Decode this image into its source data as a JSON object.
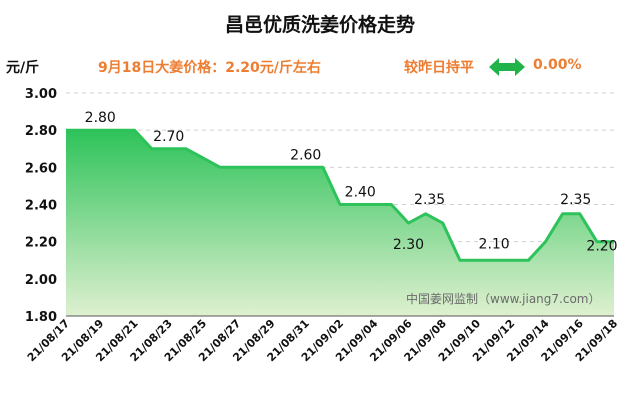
{
  "title": "昌邑优质洗姜价格走势",
  "unit_label": "元/斤",
  "price_note": "9月18日大姜价格：2.20元/斤左右",
  "comparison": {
    "label": "较昨日持平",
    "change": "0.00%",
    "arrow_icon": "double-arrow-icon"
  },
  "watermark": "中国姜网监制（www.jiang7.com）",
  "colors": {
    "line": "#2ec35a",
    "fill_top": "#2ec35a",
    "fill_bottom": "#dff0d0",
    "accent": "#ed7d31",
    "grid": "#cfcfcf"
  },
  "chart_data": {
    "type": "area",
    "x": [
      "21/08/17",
      "21/08/18",
      "21/08/19",
      "21/08/20",
      "21/08/21",
      "21/08/22",
      "21/08/23",
      "21/08/24",
      "21/08/25",
      "21/08/26",
      "21/08/27",
      "21/08/28",
      "21/08/29",
      "21/08/30",
      "21/08/31",
      "21/09/01",
      "21/09/02",
      "21/09/03",
      "21/09/04",
      "21/09/05",
      "21/09/06",
      "21/09/07",
      "21/09/08",
      "21/09/09",
      "21/09/10",
      "21/09/11",
      "21/09/12",
      "21/09/13",
      "21/09/14",
      "21/09/15",
      "21/09/16",
      "21/09/17",
      "21/09/18"
    ],
    "values": [
      2.8,
      2.8,
      2.8,
      2.8,
      2.8,
      2.7,
      2.7,
      2.7,
      2.65,
      2.6,
      2.6,
      2.6,
      2.6,
      2.6,
      2.6,
      2.6,
      2.4,
      2.4,
      2.4,
      2.4,
      2.3,
      2.35,
      2.3,
      2.1,
      2.1,
      2.1,
      2.1,
      2.1,
      2.2,
      2.35,
      2.35,
      2.2,
      2.2
    ],
    "xticks": [
      "21/08/17",
      "21/08/19",
      "21/08/21",
      "21/08/23",
      "21/08/25",
      "21/08/27",
      "21/08/29",
      "21/08/31",
      "21/09/02",
      "21/09/04",
      "21/09/06",
      "21/09/08",
      "21/09/10",
      "21/09/12",
      "21/09/14",
      "21/09/16",
      "21/09/18"
    ],
    "yticks": [
      "1.80",
      "2.00",
      "2.20",
      "2.40",
      "2.60",
      "2.80",
      "3.00"
    ],
    "ylim": [
      1.8,
      3.0
    ],
    "grid": "horizontal-dashed",
    "data_labels": [
      {
        "x": "21/08/19",
        "text": "2.80"
      },
      {
        "x": "21/08/23",
        "text": "2.70"
      },
      {
        "x": "21/08/31",
        "text": "2.60"
      },
      {
        "x": "21/09/04",
        "text": "2.40"
      },
      {
        "x": "21/09/06",
        "text": "2.30"
      },
      {
        "x": "21/09/07",
        "text": "2.35"
      },
      {
        "x": "21/09/11",
        "text": "2.10"
      },
      {
        "x": "21/09/16",
        "text": "2.35"
      },
      {
        "x": "21/09/18",
        "text": "2.20"
      }
    ]
  }
}
